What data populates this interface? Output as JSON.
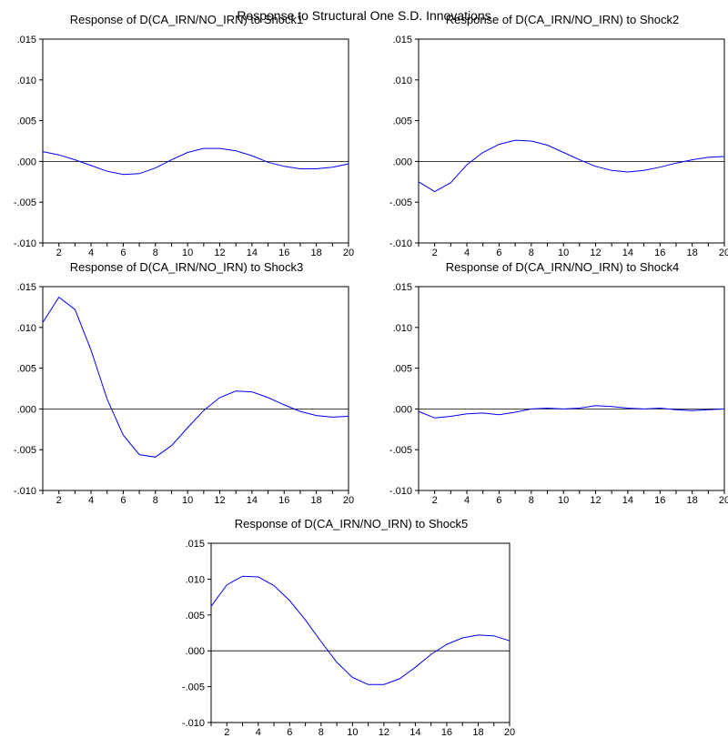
{
  "figure": {
    "title": "Response to Structural One S.D. Innovations"
  },
  "chart_data": [
    {
      "type": "line",
      "title": "Response of D(CA_IRN/NO_IRN) to Shock1",
      "x": [
        1,
        2,
        3,
        4,
        5,
        6,
        7,
        8,
        9,
        10,
        11,
        12,
        13,
        14,
        15,
        16,
        17,
        18,
        19,
        20
      ],
      "series": [
        {
          "values": [
            0.0012,
            0.0008,
            0.0002,
            -0.0005,
            -0.0012,
            -0.0016,
            -0.0015,
            -0.0008,
            0.0002,
            0.0011,
            0.0016,
            0.0016,
            0.0013,
            0.0007,
            -0.0001,
            -0.0006,
            -0.0009,
            -0.0009,
            -0.0007,
            -0.0003
          ]
        }
      ],
      "xticks": [
        2,
        4,
        6,
        8,
        10,
        12,
        14,
        16,
        18,
        20
      ],
      "yticks": [
        "-.010",
        "-.005",
        ".000",
        ".005",
        ".010",
        ".015"
      ],
      "xlim": [
        1,
        20
      ],
      "ylim": [
        -0.01,
        0.015
      ],
      "zero_line": true,
      "line_color": "#0000ff"
    },
    {
      "type": "line",
      "title": "Response of D(CA_IRN/NO_IRN) to Shock2",
      "x": [
        1,
        2,
        3,
        4,
        5,
        6,
        7,
        8,
        9,
        10,
        11,
        12,
        13,
        14,
        15,
        16,
        17,
        18,
        19,
        20
      ],
      "series": [
        {
          "values": [
            -0.0025,
            -0.0037,
            -0.0026,
            -0.0004,
            0.0011,
            0.0021,
            0.0026,
            0.0025,
            0.002,
            0.0011,
            0.0002,
            -0.0006,
            -0.0011,
            -0.0013,
            -0.0011,
            -0.0007,
            -0.0002,
            0.0002,
            0.0005,
            0.0006
          ]
        }
      ],
      "xticks": [
        2,
        4,
        6,
        8,
        10,
        12,
        14,
        16,
        18,
        20
      ],
      "yticks": [
        "-.010",
        "-.005",
        ".000",
        ".005",
        ".010",
        ".015"
      ],
      "xlim": [
        1,
        20
      ],
      "ylim": [
        -0.01,
        0.015
      ],
      "zero_line": true,
      "line_color": "#0000ff"
    },
    {
      "type": "line",
      "title": "Response of D(CA_IRN/NO_IRN) to Shock3",
      "x": [
        1,
        2,
        3,
        4,
        5,
        6,
        7,
        8,
        9,
        10,
        11,
        12,
        13,
        14,
        15,
        16,
        17,
        18,
        19,
        20
      ],
      "series": [
        {
          "values": [
            0.0106,
            0.0137,
            0.0122,
            0.0072,
            0.0012,
            -0.0032,
            -0.0056,
            -0.0059,
            -0.0045,
            -0.0023,
            -0.0002,
            0.0014,
            0.0022,
            0.0021,
            0.0014,
            0.0005,
            -0.0003,
            -0.0008,
            -0.001,
            -0.0009
          ]
        }
      ],
      "xticks": [
        2,
        4,
        6,
        8,
        10,
        12,
        14,
        16,
        18,
        20
      ],
      "yticks": [
        "-.010",
        "-.005",
        ".000",
        ".005",
        ".010",
        ".015"
      ],
      "xlim": [
        1,
        20
      ],
      "ylim": [
        -0.01,
        0.015
      ],
      "zero_line": true,
      "line_color": "#0000ff"
    },
    {
      "type": "line",
      "title": "Response of D(CA_IRN/NO_IRN) to Shock4",
      "x": [
        1,
        2,
        3,
        4,
        5,
        6,
        7,
        8,
        9,
        10,
        11,
        12,
        13,
        14,
        15,
        16,
        17,
        18,
        19,
        20
      ],
      "series": [
        {
          "values": [
            -0.0003,
            -0.0011,
            -0.0009,
            -0.0006,
            -0.0005,
            -0.0007,
            -0.0004,
            0.0,
            0.0001,
            0.0,
            0.0001,
            0.0004,
            0.0003,
            0.0001,
            0.0,
            0.0001,
            -0.0001,
            -0.0002,
            -0.0001,
            0.0
          ]
        }
      ],
      "xticks": [
        2,
        4,
        6,
        8,
        10,
        12,
        14,
        16,
        18,
        20
      ],
      "yticks": [
        "-.010",
        "-.005",
        ".000",
        ".005",
        ".010",
        ".015"
      ],
      "xlim": [
        1,
        20
      ],
      "ylim": [
        -0.01,
        0.015
      ],
      "zero_line": true,
      "line_color": "#0000ff"
    },
    {
      "type": "line",
      "title": "Response of D(CA_IRN/NO_IRN) to Shock5",
      "x": [
        1,
        2,
        3,
        4,
        5,
        6,
        7,
        8,
        9,
        10,
        11,
        12,
        13,
        14,
        15,
        16,
        17,
        18,
        19,
        20
      ],
      "series": [
        {
          "values": [
            0.0062,
            0.0092,
            0.0104,
            0.0103,
            0.0091,
            0.007,
            0.0043,
            0.0013,
            -0.0016,
            -0.0037,
            -0.0047,
            -0.0047,
            -0.0039,
            -0.0023,
            -0.0005,
            0.0009,
            0.0018,
            0.0022,
            0.0021,
            0.0014
          ]
        }
      ],
      "xticks": [
        2,
        4,
        6,
        8,
        10,
        12,
        14,
        16,
        18,
        20
      ],
      "yticks": [
        "-.010",
        "-.005",
        ".000",
        ".005",
        ".010",
        ".015"
      ],
      "xlim": [
        1,
        20
      ],
      "ylim": [
        -0.01,
        0.015
      ],
      "zero_line": true,
      "line_color": "#0000ff"
    }
  ]
}
